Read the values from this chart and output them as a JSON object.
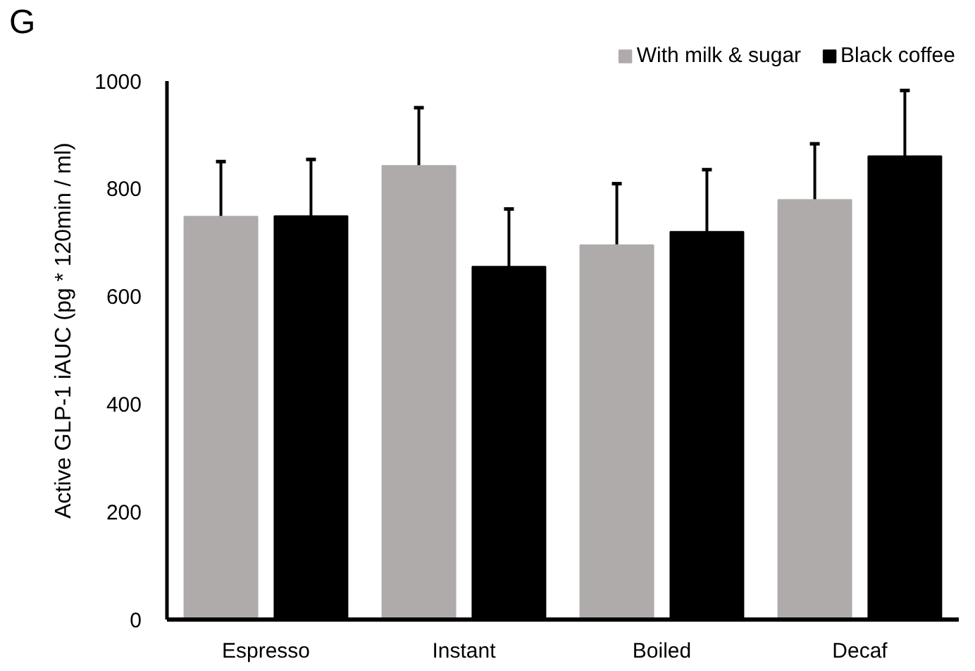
{
  "chart_data": {
    "type": "bar",
    "title": "G",
    "ylabel": "Active GLP-1 iAUC (pg * 120min / ml)",
    "categories": [
      "Espresso",
      "Instant",
      "Boiled",
      "Decaf"
    ],
    "series": [
      {
        "name": "With milk & sugar",
        "color": "#afabab",
        "values": [
          748,
          842,
          695,
          779
        ],
        "errors": [
          [
            748,
            850
          ],
          [
            842,
            950
          ],
          [
            695,
            809
          ],
          [
            779,
            883
          ]
        ]
      },
      {
        "name": "Black coffee",
        "color": "#000000",
        "values": [
          749,
          655,
          720,
          860
        ],
        "errors": [
          [
            749,
            854
          ],
          [
            655,
            762
          ],
          [
            720,
            835
          ],
          [
            860,
            982
          ]
        ]
      }
    ],
    "ylim": [
      0,
      1000
    ],
    "yticks": [
      0,
      200,
      400,
      600,
      800,
      1000
    ],
    "legend": "top right",
    "grid": false
  }
}
